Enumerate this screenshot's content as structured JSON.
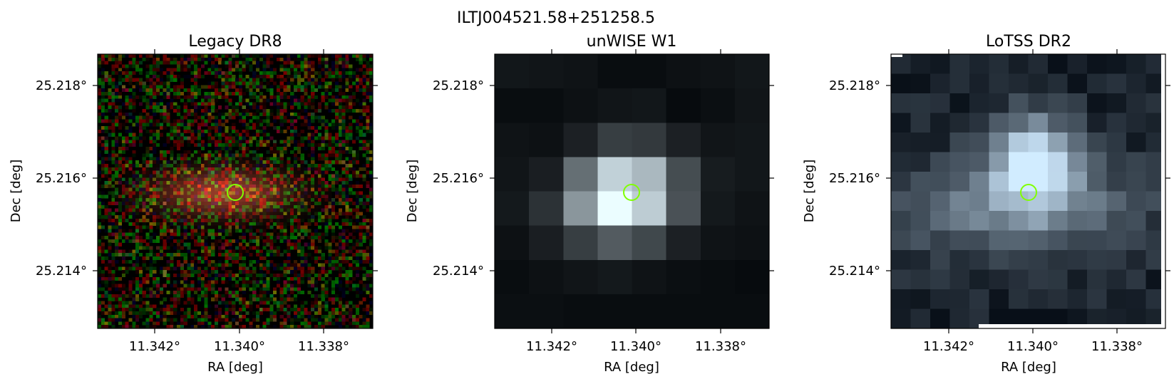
{
  "figure": {
    "title": "ILTJ004521.58+251258.5"
  },
  "panels": [
    {
      "title": "Legacy DR8",
      "image_kind": "rgb-noise-optical",
      "xlabel": "RA [deg]",
      "ylabel": "Dec [deg]",
      "xticks": [
        "11.342°",
        "11.340°",
        "11.338°"
      ],
      "yticks": [
        "25.218°",
        "25.216°",
        "25.214°"
      ],
      "marker": "circle",
      "marker_color": "#80ff00"
    },
    {
      "title": "unWISE W1",
      "image_kind": "coarse-grayscale-infrared",
      "xlabel": "RA [deg]",
      "ylabel": "Dec [deg]",
      "xticks": [
        "11.342°",
        "11.340°",
        "11.338°"
      ],
      "yticks": [
        "25.218°",
        "25.216°",
        "25.214°"
      ],
      "marker": "circle",
      "marker_color": "#80ff00"
    },
    {
      "title": "LoTSS DR2",
      "image_kind": "grayscale-blue-radio",
      "xlabel": "RA [deg]",
      "ylabel": "Dec [deg]",
      "xticks": [
        "11.342°",
        "11.340°",
        "11.338°"
      ],
      "yticks": [
        "25.218°",
        "25.216°",
        "25.214°"
      ],
      "marker": "circle",
      "marker_color": "#80ff00"
    }
  ]
}
